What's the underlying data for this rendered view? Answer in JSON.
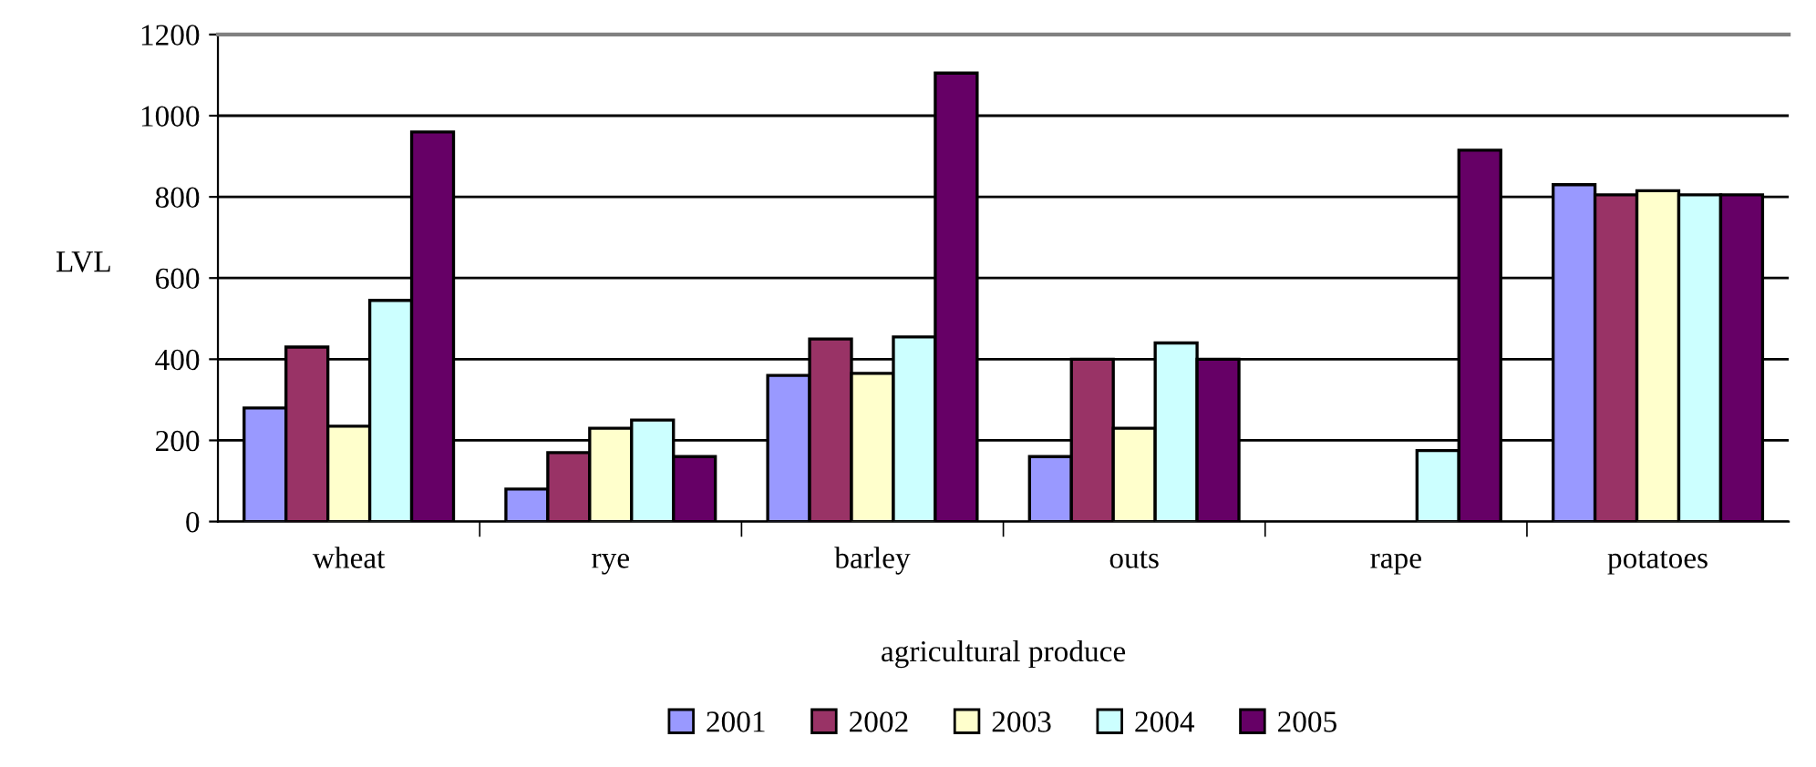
{
  "chart_data": {
    "type": "bar",
    "xlabel": "agricultural produce",
    "ylabel": "LVL",
    "categories": [
      "wheat",
      "rye",
      "barley",
      "outs",
      "rape",
      "potatoes"
    ],
    "series": [
      {
        "name": "2001",
        "color": "#9999ff",
        "values": [
          280,
          80,
          360,
          160,
          null,
          830
        ]
      },
      {
        "name": "2002",
        "color": "#993366",
        "values": [
          430,
          170,
          450,
          400,
          null,
          805
        ]
      },
      {
        "name": "2003",
        "color": "#ffffcc",
        "values": [
          235,
          230,
          365,
          230,
          null,
          815
        ]
      },
      {
        "name": "2004",
        "color": "#ccffff",
        "values": [
          545,
          250,
          455,
          440,
          175,
          805
        ]
      },
      {
        "name": "2005",
        "color": "#660066",
        "values": [
          960,
          160,
          1105,
          400,
          915,
          805
        ]
      }
    ],
    "ylim": [
      0,
      1200
    ],
    "yticks": [
      0,
      200,
      400,
      600,
      800,
      1000,
      1200
    ],
    "grid": "y",
    "legend": "bottom"
  }
}
